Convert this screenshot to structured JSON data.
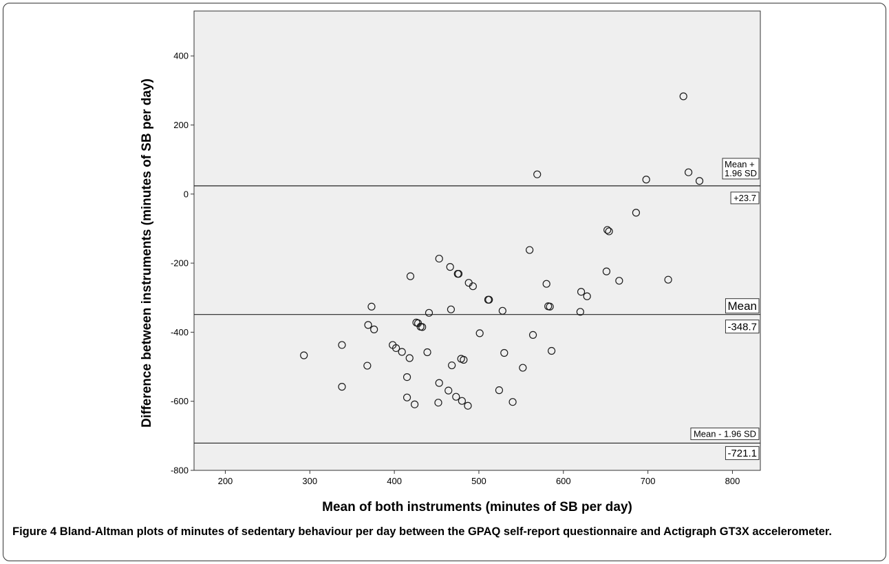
{
  "chart_data": {
    "type": "scatter",
    "xlabel": "Mean of both instruments (minutes of SB per day)",
    "ylabel": "Difference between instruments (minutes of SB per day)",
    "xlim": [
      163,
      833
    ],
    "ylim": [
      -800,
      530
    ],
    "xticks": [
      200,
      300,
      400,
      500,
      600,
      700,
      800
    ],
    "yticks": [
      -800,
      -600,
      -400,
      -200,
      0,
      200,
      400
    ],
    "grid": false,
    "background": "#efefef",
    "reference_lines": [
      {
        "y": 23.7,
        "label": "Mean +\n1.96 SD",
        "value_label": "+23.7"
      },
      {
        "y": -348.7,
        "label": "Mean",
        "value_label": "-348.7"
      },
      {
        "y": -721.1,
        "label": "Mean - 1.96 SD",
        "value_label": "-721.1"
      }
    ],
    "points": [
      {
        "x": 742,
        "y": 283
      },
      {
        "x": 569,
        "y": 57
      },
      {
        "x": 698,
        "y": 42
      },
      {
        "x": 748,
        "y": 63
      },
      {
        "x": 761,
        "y": 38
      },
      {
        "x": 686,
        "y": -54
      },
      {
        "x": 652,
        "y": -104
      },
      {
        "x": 654,
        "y": -108
      },
      {
        "x": 560,
        "y": -162
      },
      {
        "x": 453,
        "y": -187
      },
      {
        "x": 466,
        "y": -211
      },
      {
        "x": 475,
        "y": -231
      },
      {
        "x": 476,
        "y": -231
      },
      {
        "x": 419,
        "y": -238
      },
      {
        "x": 488,
        "y": -257
      },
      {
        "x": 493,
        "y": -267
      },
      {
        "x": 580,
        "y": -260
      },
      {
        "x": 651,
        "y": -224
      },
      {
        "x": 666,
        "y": -251
      },
      {
        "x": 724,
        "y": -248
      },
      {
        "x": 621,
        "y": -283
      },
      {
        "x": 628,
        "y": -296
      },
      {
        "x": 511,
        "y": -306
      },
      {
        "x": 512,
        "y": -306
      },
      {
        "x": 582,
        "y": -325
      },
      {
        "x": 584,
        "y": -326
      },
      {
        "x": 373,
        "y": -326
      },
      {
        "x": 467,
        "y": -334
      },
      {
        "x": 528,
        "y": -338
      },
      {
        "x": 620,
        "y": -341
      },
      {
        "x": 441,
        "y": -344
      },
      {
        "x": 426,
        "y": -372
      },
      {
        "x": 428,
        "y": -374
      },
      {
        "x": 431,
        "y": -384
      },
      {
        "x": 433,
        "y": -385
      },
      {
        "x": 369,
        "y": -379
      },
      {
        "x": 376,
        "y": -392
      },
      {
        "x": 501,
        "y": -403
      },
      {
        "x": 564,
        "y": -408
      },
      {
        "x": 293,
        "y": -467
      },
      {
        "x": 338,
        "y": -437
      },
      {
        "x": 398,
        "y": -437
      },
      {
        "x": 402,
        "y": -446
      },
      {
        "x": 409,
        "y": -457
      },
      {
        "x": 418,
        "y": -475
      },
      {
        "x": 439,
        "y": -458
      },
      {
        "x": 479,
        "y": -477
      },
      {
        "x": 482,
        "y": -480
      },
      {
        "x": 530,
        "y": -460
      },
      {
        "x": 586,
        "y": -454
      },
      {
        "x": 368,
        "y": -497
      },
      {
        "x": 468,
        "y": -496
      },
      {
        "x": 552,
        "y": -503
      },
      {
        "x": 415,
        "y": -530
      },
      {
        "x": 453,
        "y": -547
      },
      {
        "x": 338,
        "y": -558
      },
      {
        "x": 464,
        "y": -569
      },
      {
        "x": 524,
        "y": -568
      },
      {
        "x": 415,
        "y": -589
      },
      {
        "x": 473,
        "y": -587
      },
      {
        "x": 480,
        "y": -599
      },
      {
        "x": 424,
        "y": -609
      },
      {
        "x": 452,
        "y": -604
      },
      {
        "x": 487,
        "y": -613
      },
      {
        "x": 540,
        "y": -602
      }
    ]
  },
  "caption": {
    "label": "Figure 4",
    "text": "Bland-Altman plots of minutes of sedentary behaviour per day between the GPAQ self-report questionnaire and Actigraph GT3X accelerometer."
  }
}
